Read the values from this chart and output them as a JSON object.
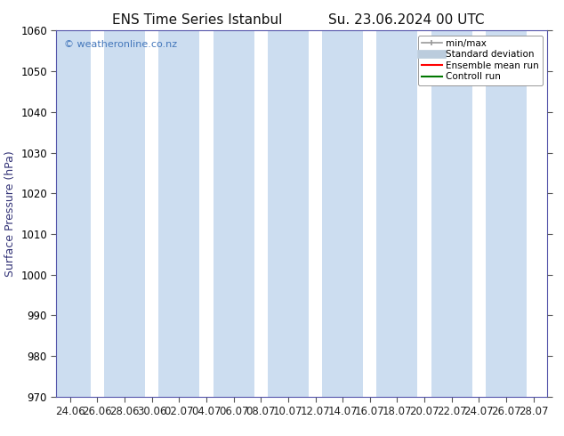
{
  "title_left": "ENS Time Series Istanbul",
  "title_right": "Su. 23.06.2024 00 UTC",
  "ylabel": "Surface Pressure (hPa)",
  "ylim": [
    970,
    1060
  ],
  "yticks": [
    970,
    980,
    990,
    1000,
    1010,
    1020,
    1030,
    1040,
    1050,
    1060
  ],
  "x_labels": [
    "24.06",
    "26.06",
    "28.06",
    "30.06",
    "02.07",
    "04.07",
    "06.07",
    "08.07",
    "10.07",
    "12.07",
    "14.07",
    "16.07",
    "18.07",
    "20.07",
    "22.07",
    "24.07",
    "26.07",
    "28.07"
  ],
  "watermark": "© weatheronline.co.nz",
  "watermark_color": "#4477bb",
  "background_color": "#ffffff",
  "stripe_color": "#ccddf0",
  "stripe_indices": [
    0,
    2,
    4,
    6,
    8,
    10,
    12,
    14,
    16
  ],
  "title_fontsize": 11,
  "label_fontsize": 9,
  "tick_fontsize": 8.5,
  "ylabel_color": "#333377",
  "border_color": "#5555aa",
  "legend_fontsize": 7.5,
  "minmax_color": "#999999",
  "stddev_color": "#bbccdd",
  "ensemble_color": "#ff0000",
  "control_color": "#007700"
}
